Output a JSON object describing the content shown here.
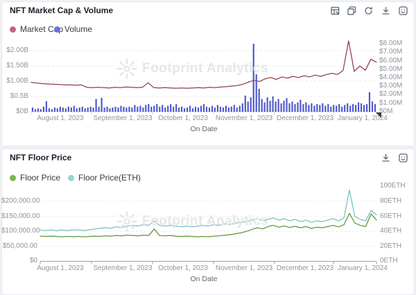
{
  "watermark": {
    "text": "Footprint Analytics"
  },
  "panels": [
    {
      "title": "NFT Market Cap & Volume",
      "toolbar_icons": [
        "view-table",
        "copy",
        "refresh",
        "download",
        "watermark"
      ],
      "legend": [
        {
          "label": "Market Cap",
          "dot_color": "#c4637d"
        },
        {
          "label": "Volume",
          "dot_color": "#6a74d6"
        }
      ]
    },
    {
      "title": "NFT Floor Price",
      "toolbar_icons": [
        "download",
        "watermark"
      ],
      "legend": [
        {
          "label": "Floor Price",
          "dot_color": "#7ab648"
        },
        {
          "label": "Floor Price(ETH)",
          "dot_color": "#93d5d0"
        }
      ]
    }
  ],
  "chart_data": [
    {
      "type": "line+bar",
      "title": "NFT Market Cap & Volume",
      "grid": "horizontal-dashed",
      "legend_position": "top-left",
      "x_axis": {
        "label": "On Date",
        "tick_labels": [
          "August 1, 2023",
          "September 1, 2023",
          "October 1, 2023",
          "November 1, 2023",
          "December 1, 2023",
          "January 1, 2024"
        ]
      },
      "y_axis_left": {
        "tick_labels": [
          "$2.00B",
          "$1.50B",
          "$1.00B",
          "$0.5B",
          "$0B"
        ],
        "min": 0,
        "max": 2000000000,
        "unit": "USD"
      },
      "y_axis_right": {
        "tick_labels": [
          "$8.00M",
          "$7.00M",
          "$6.00M",
          "$5.00M",
          "$4.00M",
          "$3.00M",
          "$2.00M",
          "$1.00M",
          "$0M"
        ],
        "min": 0,
        "max": 8000000,
        "unit": "USD"
      },
      "series": [
        {
          "name": "Market Cap",
          "type": "line",
          "axis": "left",
          "unit": "USD billions",
          "color": "#8e3b50",
          "values": [
            0.96,
            0.94,
            0.92,
            0.91,
            0.9,
            0.89,
            0.88,
            0.88,
            0.87,
            0.88,
            0.8,
            0.79,
            0.8,
            0.79,
            0.78,
            0.8,
            0.79,
            0.81,
            0.8,
            0.79,
            0.8,
            0.95,
            0.79,
            0.78,
            0.79,
            0.78,
            0.77,
            0.78,
            0.77,
            0.78,
            0.79,
            0.78,
            0.8,
            0.79,
            0.81,
            0.82,
            0.84,
            0.86,
            0.9,
            0.97,
            1.03,
            0.99,
            1.08,
            1.12,
            1.06,
            1.14,
            1.1,
            1.16,
            1.12,
            1.18,
            1.14,
            1.2,
            1.16,
            1.22,
            1.26,
            1.22,
            1.35,
            2.32,
            1.32,
            1.5,
            1.36,
            1.72,
            1.62
          ]
        },
        {
          "name": "Volume",
          "type": "bar",
          "axis": "right",
          "unit": "USD millions",
          "color": "#4f59c9",
          "values": [
            0.5,
            0.3,
            0.4,
            0.3,
            0.6,
            1.25,
            0.4,
            0.3,
            0.5,
            0.4,
            0.6,
            0.5,
            0.4,
            0.6,
            0.5,
            0.7,
            0.4,
            0.5,
            0.6,
            0.4,
            0.5,
            0.6,
            0.5,
            1.5,
            0.6,
            1.65,
            0.5,
            0.6,
            0.4,
            0.5,
            0.6,
            0.5,
            0.7,
            0.6,
            0.5,
            0.6,
            0.5,
            0.8,
            0.6,
            0.7,
            0.5,
            0.8,
            0.9,
            0.6,
            0.7,
            0.9,
            0.6,
            0.8,
            0.5,
            0.7,
            0.9,
            0.6,
            0.9,
            0.5,
            0.6,
            0.4,
            0.5,
            0.7,
            0.4,
            0.6,
            0.5,
            0.7,
            0.9,
            0.6,
            0.5,
            0.7,
            0.5,
            0.8,
            0.6,
            0.5,
            0.7,
            0.5,
            0.6,
            0.8,
            0.5,
            0.7,
            1.0,
            1.9,
            1.2,
            1.7,
            8.0,
            4.4,
            2.7,
            1.5,
            1.1,
            1.7,
            1.3,
            1.8,
            1.2,
            1.5,
            1.0,
            1.3,
            1.6,
            1.0,
            1.2,
            0.9,
            1.1,
            1.4,
            0.9,
            1.1,
            0.8,
            1.0,
            0.7,
            0.9,
            0.8,
            1.0,
            0.7,
            0.9,
            0.6,
            0.8,
            0.7,
            0.9,
            0.6,
            0.8,
            1.0,
            0.7,
            0.9,
            0.8,
            1.1,
            1.0,
            0.8,
            0.9,
            2.3,
            1.2,
            0.9
          ]
        }
      ]
    },
    {
      "type": "line",
      "title": "NFT Floor Price",
      "grid": "horizontal-dashed",
      "legend_position": "top-left",
      "x_axis": {
        "label": "On Date",
        "tick_labels": [
          "August 1, 2023",
          "September 1, 2023",
          "October 1, 2023",
          "November 1, 2023",
          "December 1, 2023",
          "January 1, 2024"
        ]
      },
      "y_axis_left": {
        "tick_labels": [
          "$200,000.00",
          "$150,000.00",
          "$100,000.00",
          "$50,000.00",
          "$0"
        ],
        "min": 0,
        "max": 200000,
        "unit": "USD"
      },
      "y_axis_right": {
        "tick_labels": [
          "100ETH",
          "80ETH",
          "60ETH",
          "40ETH",
          "20ETH",
          "0ETH"
        ],
        "min": 0,
        "max": 100,
        "unit": "ETH"
      },
      "series": [
        {
          "name": "Floor Price",
          "type": "line",
          "axis": "left",
          "unit": "USD thousands",
          "color": "#5f9433",
          "values": [
            84,
            83,
            84,
            83,
            82,
            83,
            82,
            83,
            82,
            83,
            84,
            83,
            85,
            84,
            86,
            85,
            87,
            86,
            85,
            87,
            86,
            108,
            86,
            85,
            86,
            84,
            83,
            84,
            83,
            82,
            83,
            82,
            84,
            85,
            87,
            89,
            92,
            95,
            100,
            106,
            112,
            108,
            116,
            120,
            114,
            118,
            113,
            117,
            112,
            116,
            110,
            114,
            112,
            116,
            120,
            115,
            122,
            160,
            128,
            120,
            116,
            158,
            138
          ]
        },
        {
          "name": "Floor Price(ETH)",
          "type": "line",
          "axis": "right",
          "unit": "ETH",
          "color": "#72c3bd",
          "values": [
            42,
            41,
            42,
            41,
            42,
            41,
            42,
            42,
            41,
            42,
            43,
            44,
            45,
            44,
            46,
            45,
            47,
            48,
            47,
            49,
            48,
            54,
            48,
            47,
            48,
            47,
            46,
            47,
            46,
            47,
            48,
            47,
            49,
            48,
            50,
            49,
            51,
            52,
            53,
            55,
            57,
            54,
            56,
            58,
            55,
            57,
            54,
            56,
            53,
            55,
            52,
            54,
            53,
            55,
            57,
            54,
            58,
            95,
            60,
            56,
            54,
            68,
            62
          ]
        }
      ]
    }
  ]
}
